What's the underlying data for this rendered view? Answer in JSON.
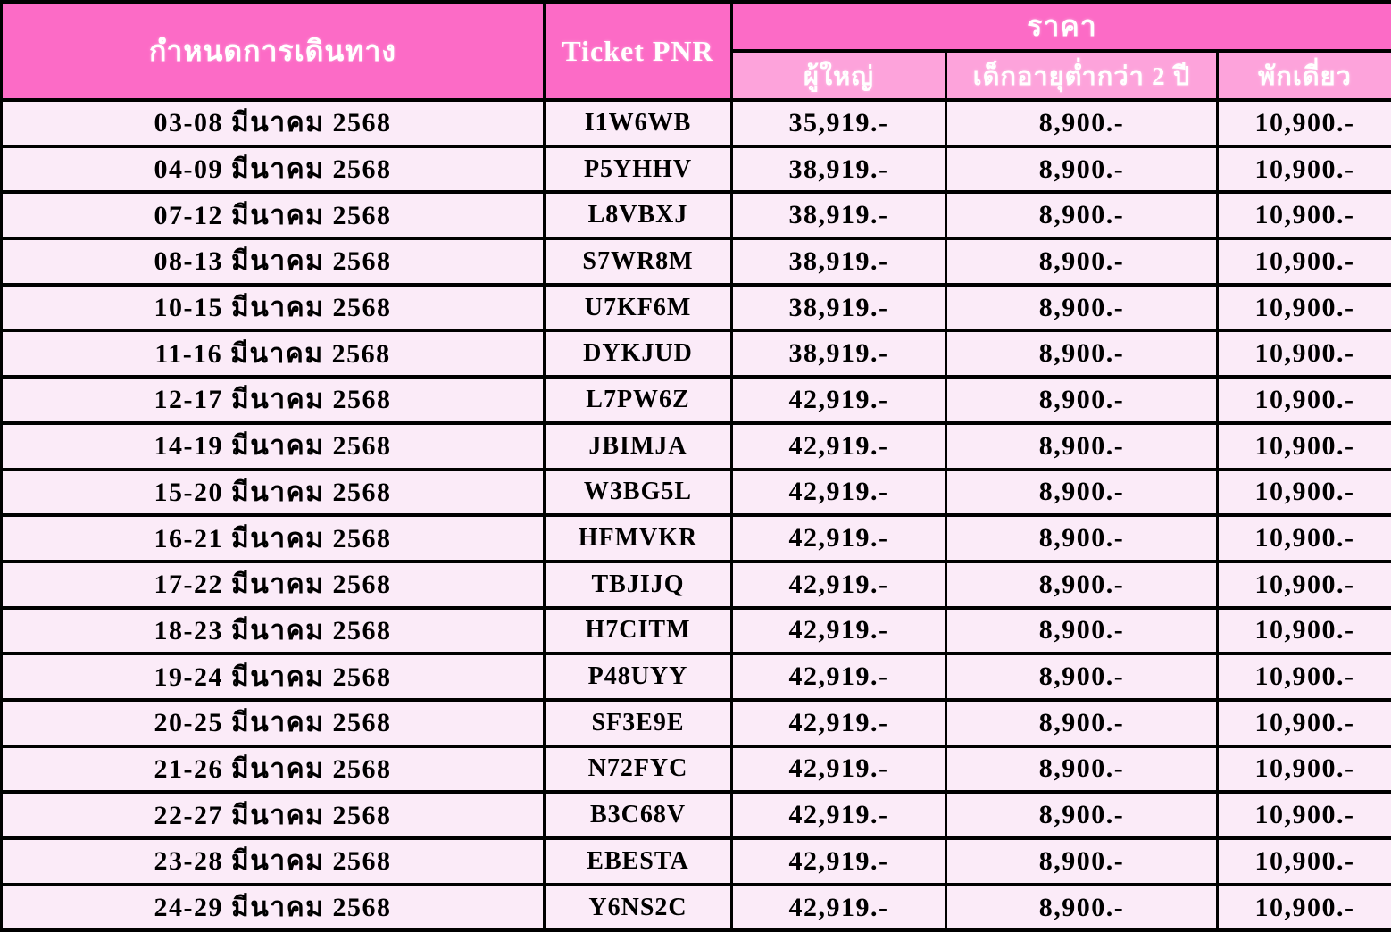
{
  "price_table": {
    "headers": {
      "schedule": "กำหนดการเดินทาง",
      "ticket_pnr": "Ticket PNR",
      "price_group": "ราคา",
      "adult": "ผู้ใหญ่",
      "child_under_2": "เด็กอายุต่ำกว่า 2 ปี",
      "single_supplement": "พักเดี่ยว"
    },
    "rows": [
      {
        "date": "03-08 มีนาคม 2568",
        "pnr": "I1W6WB",
        "adult": "35,919.-",
        "child": "8,900.-",
        "single": "10,900.-"
      },
      {
        "date": "04-09 มีนาคม 2568",
        "pnr": "P5YHHV",
        "adult": "38,919.-",
        "child": "8,900.-",
        "single": "10,900.-"
      },
      {
        "date": "07-12 มีนาคม 2568",
        "pnr": "L8VBXJ",
        "adult": "38,919.-",
        "child": "8,900.-",
        "single": "10,900.-"
      },
      {
        "date": "08-13 มีนาคม 2568",
        "pnr": "S7WR8M",
        "adult": "38,919.-",
        "child": "8,900.-",
        "single": "10,900.-"
      },
      {
        "date": "10-15 มีนาคม 2568",
        "pnr": "U7KF6M",
        "adult": "38,919.-",
        "child": "8,900.-",
        "single": "10,900.-"
      },
      {
        "date": "11-16 มีนาคม 2568",
        "pnr": "DYKJUD",
        "adult": "38,919.-",
        "child": "8,900.-",
        "single": "10,900.-"
      },
      {
        "date": "12-17 มีนาคม 2568",
        "pnr": "L7PW6Z",
        "adult": "42,919.-",
        "child": "8,900.-",
        "single": "10,900.-"
      },
      {
        "date": "14-19 มีนาคม 2568",
        "pnr": "JBIMJA",
        "adult": "42,919.-",
        "child": "8,900.-",
        "single": "10,900.-"
      },
      {
        "date": "15-20 มีนาคม 2568",
        "pnr": "W3BG5L",
        "adult": "42,919.-",
        "child": "8,900.-",
        "single": "10,900.-"
      },
      {
        "date": "16-21 มีนาคม 2568",
        "pnr": "HFMVKR",
        "adult": "42,919.-",
        "child": "8,900.-",
        "single": "10,900.-"
      },
      {
        "date": "17-22 มีนาคม 2568",
        "pnr": "TBJIJQ",
        "adult": "42,919.-",
        "child": "8,900.-",
        "single": "10,900.-"
      },
      {
        "date": "18-23 มีนาคม 2568",
        "pnr": "H7CITM",
        "adult": "42,919.-",
        "child": "8,900.-",
        "single": "10,900.-"
      },
      {
        "date": "19-24 มีนาคม 2568",
        "pnr": "P48UYY",
        "adult": "42,919.-",
        "child": "8,900.-",
        "single": "10,900.-"
      },
      {
        "date": "20-25 มีนาคม 2568",
        "pnr": "SF3E9E",
        "adult": "42,919.-",
        "child": "8,900.-",
        "single": "10,900.-"
      },
      {
        "date": "21-26 มีนาคม 2568",
        "pnr": "N72FYC",
        "adult": "42,919.-",
        "child": "8,900.-",
        "single": "10,900.-"
      },
      {
        "date": "22-27 มีนาคม 2568",
        "pnr": "B3C68V",
        "adult": "42,919.-",
        "child": "8,900.-",
        "single": "10,900.-"
      },
      {
        "date": "23-28 มีนาคม 2568",
        "pnr": "EBESTA",
        "adult": "42,919.-",
        "child": "8,900.-",
        "single": "10,900.-"
      },
      {
        "date": "24-29 มีนาคม 2568",
        "pnr": "Y6NS2C",
        "adult": "42,919.-",
        "child": "8,900.-",
        "single": "10,900.-"
      }
    ]
  },
  "colors": {
    "header_bg": "#fc6bc6",
    "subheader_bg": "#fda3db",
    "row_bg": "#fbebf8",
    "border": "#000000",
    "header_text": "#ffffff",
    "body_text": "#000000"
  }
}
